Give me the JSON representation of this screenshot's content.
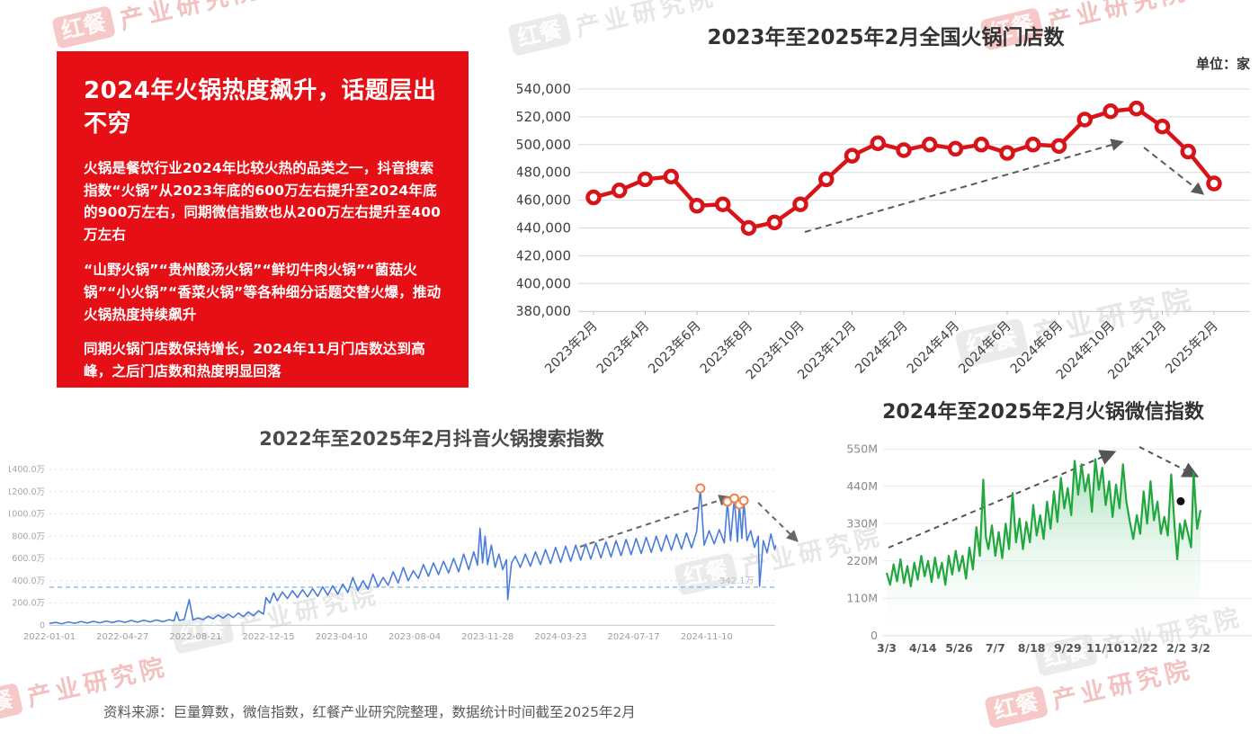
{
  "watermark": {
    "brand": "红餐",
    "org": "产业研究院"
  },
  "panel": {
    "bg": "#e50f15",
    "title": "2024年火锅热度飙升，话题层出不穷",
    "paragraphs": [
      "火锅是餐饮行业2024年比较火热的品类之一，抖音搜索指数“火锅”从2023年底的600万左右提升至2024年底的900万左右，同期微信指数也从200万左右提升至400万左右",
      "“山野火锅”“贵州酸汤火锅”“鲜切牛肉火锅”“菌菇火锅”“小火锅”“香菜火锅”等各种细分话题交替火爆，推动火锅热度持续飙升",
      "同期火锅门店数保持增长，2024年11月门店数达到高峰，之后门店数和热度明显回落"
    ]
  },
  "footer": {
    "text": "资料来源：巨量算数，微信指数，红餐产业研究院整理，数据统计时间截至2025年2月"
  },
  "chart_data": [
    {
      "id": "stores",
      "type": "line",
      "title": "2023年至2025年2月全国火锅门店数",
      "unit_label": "单位：家",
      "line_color": "#d7141a",
      "marker": "open-circle",
      "grid": true,
      "legend": "none",
      "ylim": [
        380000,
        540000
      ],
      "ytick_step": 20000,
      "ytick_labels": [
        "540,000",
        "520,000",
        "500,000",
        "480,000",
        "460,000",
        "440,000",
        "420,000",
        "400,000",
        "380,000"
      ],
      "categories": [
        "2023年2月",
        "2023年3月",
        "2023年4月",
        "2023年5月",
        "2023年6月",
        "2023年7月",
        "2023年8月",
        "2023年9月",
        "2023年10月",
        "2023年11月",
        "2023年12月",
        "2024年1月",
        "2024年2月",
        "2024年3月",
        "2024年4月",
        "2024年5月",
        "2024年6月",
        "2024年7月",
        "2024年8月",
        "2024年9月",
        "2024年10月",
        "2024年11月",
        "2024年12月",
        "2025年1月",
        "2025年2月"
      ],
      "values": [
        462000,
        467000,
        475000,
        477000,
        456000,
        457000,
        440000,
        444000,
        457000,
        475000,
        492000,
        501000,
        496000,
        500000,
        497000,
        500000,
        494000,
        500000,
        499000,
        518000,
        524000,
        526000,
        513000,
        495000,
        472000
      ],
      "x_tick_labels": [
        "2023年2月",
        "2023年4月",
        "2023年6月",
        "2023年8月",
        "2023年10月",
        "2023年12月",
        "2024年2月",
        "2024年4月",
        "2024年6月",
        "2024年8月",
        "2024年10月",
        "2024年12月",
        "2025年2月"
      ],
      "trend_annotation": "dashed rise arrow to 2024-11 peak, then dashed fall arrow"
    },
    {
      "id": "douyin",
      "type": "line",
      "title": "2022年至2025年2月抖音火锅搜索指数",
      "line_color": "#4a7cdb",
      "unit": "万",
      "ylim_wan": [
        0,
        1400
      ],
      "ytick_labels": [
        "1400.0万",
        "1200.0万",
        "1000.0万",
        "800.0万",
        "600.0万",
        "400.0万",
        "200.0万",
        "0"
      ],
      "x_tick_labels": [
        "2022-01-01",
        "2022-04-27",
        "2022-08-21",
        "2022-12-15",
        "2023-04-10",
        "2023-08-04",
        "2023-11-28",
        "2024-03-23",
        "2024-07-17",
        "2024-11-10"
      ],
      "x_tick_days": [
        0,
        116,
        232,
        348,
        464,
        580,
        696,
        812,
        928,
        1044
      ],
      "ref_line": {
        "value_wan": 342.1,
        "label": "342.1万"
      },
      "points_day_wan": [
        [
          0,
          16
        ],
        [
          10,
          26
        ],
        [
          20,
          14
        ],
        [
          30,
          30
        ],
        [
          40,
          18
        ],
        [
          50,
          34
        ],
        [
          60,
          20
        ],
        [
          70,
          36
        ],
        [
          80,
          22
        ],
        [
          90,
          38
        ],
        [
          100,
          24
        ],
        [
          110,
          40
        ],
        [
          120,
          26
        ],
        [
          130,
          44
        ],
        [
          140,
          28
        ],
        [
          150,
          46
        ],
        [
          160,
          30
        ],
        [
          170,
          48
        ],
        [
          180,
          32
        ],
        [
          190,
          50
        ],
        [
          198,
          40
        ],
        [
          202,
          120
        ],
        [
          206,
          44
        ],
        [
          214,
          52
        ],
        [
          222,
          230
        ],
        [
          228,
          48
        ],
        [
          236,
          66
        ],
        [
          244,
          50
        ],
        [
          252,
          80
        ],
        [
          260,
          58
        ],
        [
          268,
          92
        ],
        [
          276,
          64
        ],
        [
          284,
          100
        ],
        [
          292,
          70
        ],
        [
          300,
          110
        ],
        [
          308,
          78
        ],
        [
          316,
          120
        ],
        [
          324,
          86
        ],
        [
          332,
          130
        ],
        [
          340,
          100
        ],
        [
          344,
          250
        ],
        [
          350,
          200
        ],
        [
          356,
          290
        ],
        [
          362,
          220
        ],
        [
          370,
          300
        ],
        [
          378,
          240
        ],
        [
          386,
          310
        ],
        [
          394,
          250
        ],
        [
          402,
          320
        ],
        [
          410,
          255
        ],
        [
          418,
          330
        ],
        [
          426,
          260
        ],
        [
          434,
          345
        ],
        [
          442,
          270
        ],
        [
          450,
          355
        ],
        [
          458,
          280
        ],
        [
          466,
          370
        ],
        [
          474,
          295
        ],
        [
          482,
          430
        ],
        [
          490,
          310
        ],
        [
          498,
          400
        ],
        [
          506,
          325
        ],
        [
          514,
          460
        ],
        [
          522,
          345
        ],
        [
          530,
          430
        ],
        [
          538,
          360
        ],
        [
          546,
          480
        ],
        [
          554,
          380
        ],
        [
          562,
          520
        ],
        [
          570,
          400
        ],
        [
          578,
          490
        ],
        [
          586,
          420
        ],
        [
          594,
          545
        ],
        [
          602,
          440
        ],
        [
          610,
          560
        ],
        [
          618,
          455
        ],
        [
          626,
          575
        ],
        [
          634,
          470
        ],
        [
          642,
          600
        ],
        [
          650,
          480
        ],
        [
          658,
          640
        ],
        [
          666,
          500
        ],
        [
          674,
          660
        ],
        [
          680,
          540
        ],
        [
          684,
          870
        ],
        [
          688,
          560
        ],
        [
          692,
          800
        ],
        [
          696,
          545
        ],
        [
          702,
          720
        ],
        [
          708,
          520
        ],
        [
          714,
          640
        ],
        [
          720,
          500
        ],
        [
          726,
          590
        ],
        [
          728,
          230
        ],
        [
          734,
          560
        ],
        [
          740,
          620
        ],
        [
          748,
          520
        ],
        [
          756,
          640
        ],
        [
          764,
          530
        ],
        [
          772,
          660
        ],
        [
          780,
          545
        ],
        [
          788,
          680
        ],
        [
          796,
          555
        ],
        [
          804,
          700
        ],
        [
          812,
          565
        ],
        [
          820,
          710
        ],
        [
          828,
          575
        ],
        [
          836,
          720
        ],
        [
          844,
          585
        ],
        [
          852,
          730
        ],
        [
          860,
          595
        ],
        [
          868,
          740
        ],
        [
          876,
          605
        ],
        [
          884,
          750
        ],
        [
          892,
          615
        ],
        [
          900,
          760
        ],
        [
          908,
          625
        ],
        [
          916,
          770
        ],
        [
          924,
          635
        ],
        [
          932,
          780
        ],
        [
          940,
          645
        ],
        [
          948,
          790
        ],
        [
          956,
          655
        ],
        [
          964,
          800
        ],
        [
          972,
          665
        ],
        [
          980,
          810
        ],
        [
          988,
          675
        ],
        [
          996,
          820
        ],
        [
          1004,
          685
        ],
        [
          1012,
          830
        ],
        [
          1020,
          695
        ],
        [
          1028,
          840
        ],
        [
          1034,
          1230
        ],
        [
          1040,
          720
        ],
        [
          1048,
          850
        ],
        [
          1056,
          730
        ],
        [
          1064,
          860
        ],
        [
          1072,
          740
        ],
        [
          1077,
          1110
        ],
        [
          1082,
          760
        ],
        [
          1088,
          1140
        ],
        [
          1093,
          750
        ],
        [
          1096,
          1085
        ],
        [
          1100,
          780
        ],
        [
          1103,
          1120
        ],
        [
          1108,
          760
        ],
        [
          1114,
          850
        ],
        [
          1120,
          700
        ],
        [
          1126,
          800
        ],
        [
          1128,
          350
        ],
        [
          1134,
          760
        ],
        [
          1140,
          650
        ],
        [
          1146,
          820
        ],
        [
          1152,
          680
        ],
        [
          1154,
          720
        ]
      ],
      "highlight_points_day_wan": [
        [
          1034,
          1230
        ],
        [
          1077,
          1110
        ],
        [
          1088,
          1140
        ],
        [
          1096,
          1085
        ],
        [
          1103,
          1120
        ]
      ],
      "highlight_color": "#f0824f",
      "trend_annotation": "dashed rise arrow to late-2024 peaks, then dashed fall arrow"
    },
    {
      "id": "wechat",
      "type": "area",
      "title": "2024年至2025年2月火锅微信指数",
      "line_color": "#21a73e",
      "unit": "M",
      "ylim_m": [
        0,
        550
      ],
      "ytick_labels": [
        "550M",
        "440M",
        "330M",
        "220M",
        "110M",
        "0"
      ],
      "x_tick_labels": [
        "3/3",
        "4/14",
        "5/26",
        "7/7",
        "8/18",
        "9/29",
        "11/10",
        "12/22",
        "2/2",
        "3/2"
      ],
      "x_tick_days": [
        0,
        42,
        84,
        126,
        168,
        210,
        252,
        294,
        336,
        364
      ],
      "points_day_m": [
        [
          0,
          185
        ],
        [
          4,
          150
        ],
        [
          8,
          210
        ],
        [
          12,
          160
        ],
        [
          16,
          225
        ],
        [
          20,
          155
        ],
        [
          24,
          205
        ],
        [
          28,
          145
        ],
        [
          32,
          215
        ],
        [
          36,
          165
        ],
        [
          40,
          235
        ],
        [
          44,
          175
        ],
        [
          48,
          220
        ],
        [
          52,
          158
        ],
        [
          56,
          230
        ],
        [
          60,
          170
        ],
        [
          64,
          215
        ],
        [
          68,
          150
        ],
        [
          72,
          235
        ],
        [
          76,
          180
        ],
        [
          80,
          250
        ],
        [
          84,
          190
        ],
        [
          88,
          235
        ],
        [
          92,
          168
        ],
        [
          96,
          260
        ],
        [
          100,
          195
        ],
        [
          104,
          320
        ],
        [
          108,
          235
        ],
        [
          112,
          460
        ],
        [
          115,
          290
        ],
        [
          118,
          255
        ],
        [
          122,
          325
        ],
        [
          126,
          235
        ],
        [
          130,
          305
        ],
        [
          134,
          228
        ],
        [
          138,
          330
        ],
        [
          142,
          255
        ],
        [
          146,
          420
        ],
        [
          150,
          275
        ],
        [
          154,
          345
        ],
        [
          158,
          255
        ],
        [
          162,
          335
        ],
        [
          166,
          275
        ],
        [
          170,
          385
        ],
        [
          174,
          295
        ],
        [
          178,
          355
        ],
        [
          182,
          285
        ],
        [
          186,
          395
        ],
        [
          190,
          315
        ],
        [
          194,
          425
        ],
        [
          198,
          335
        ],
        [
          202,
          465
        ],
        [
          206,
          375
        ],
        [
          210,
          435
        ],
        [
          214,
          355
        ],
        [
          218,
          515
        ],
        [
          222,
          415
        ],
        [
          226,
          505
        ],
        [
          230,
          425
        ],
        [
          234,
          475
        ],
        [
          238,
          365
        ],
        [
          242,
          520
        ],
        [
          246,
          430
        ],
        [
          250,
          495
        ],
        [
          254,
          385
        ],
        [
          258,
          455
        ],
        [
          262,
          350
        ],
        [
          266,
          445
        ],
        [
          270,
          375
        ],
        [
          274,
          505
        ],
        [
          278,
          395
        ],
        [
          282,
          335
        ],
        [
          286,
          285
        ],
        [
          290,
          355
        ],
        [
          294,
          300
        ],
        [
          298,
          425
        ],
        [
          302,
          330
        ],
        [
          306,
          455
        ],
        [
          310,
          340
        ],
        [
          314,
          395
        ],
        [
          318,
          300
        ],
        [
          322,
          350
        ],
        [
          326,
          295
        ],
        [
          330,
          475
        ],
        [
          334,
          320
        ],
        [
          337,
          225
        ],
        [
          340,
          330
        ],
        [
          343,
          285
        ],
        [
          346,
          340
        ],
        [
          350,
          295
        ],
        [
          353,
          260
        ],
        [
          356,
          480
        ],
        [
          360,
          315
        ],
        [
          364,
          370
        ]
      ],
      "dot_day_m": [
        341,
        396
      ],
      "trend_annotation": "dashed rise arrow to 11/10 peak, then dashed fall arrow"
    }
  ]
}
